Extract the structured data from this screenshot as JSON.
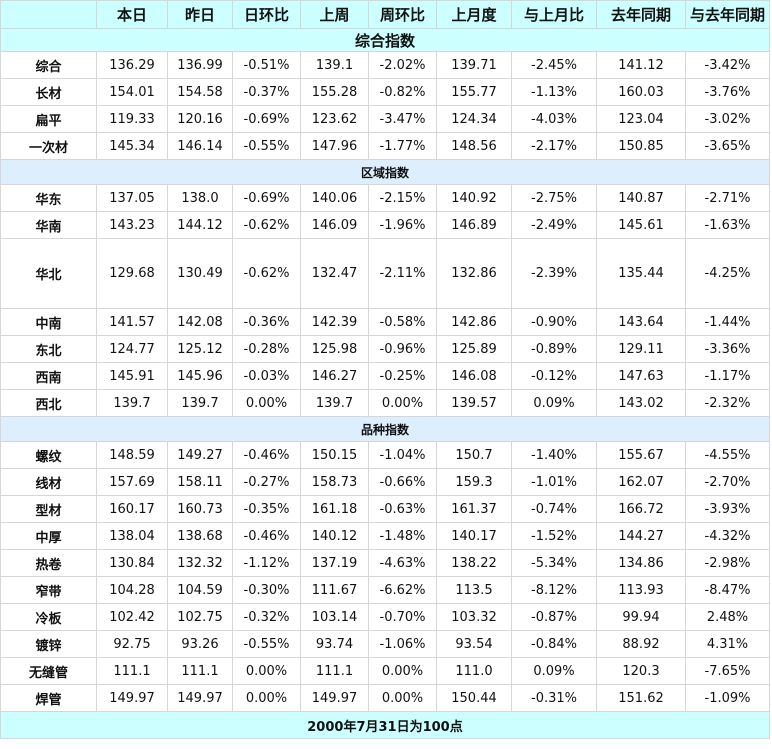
{
  "headers": [
    "本日",
    "昨日",
    "日环比",
    "上周",
    "周环比",
    "上月度",
    "与上月比",
    "去年同期",
    "与去年同期"
  ],
  "sections": [
    {
      "title": "综合指数",
      "style": "title",
      "rows": [
        {
          "name": "综合",
          "values": [
            "136.29",
            "136.99",
            "-0.51%",
            "139.1",
            "-2.02%",
            "139.71",
            "-2.45%",
            "141.12",
            "-3.42%"
          ]
        },
        {
          "name": "长材",
          "values": [
            "154.01",
            "154.58",
            "-0.37%",
            "155.28",
            "-0.82%",
            "155.77",
            "-1.13%",
            "160.03",
            "-3.76%"
          ]
        },
        {
          "name": "扁平",
          "values": [
            "119.33",
            "120.16",
            "-0.69%",
            "123.62",
            "-3.47%",
            "124.34",
            "-4.03%",
            "123.04",
            "-3.02%"
          ]
        },
        {
          "name": "一次材",
          "values": [
            "145.34",
            "146.14",
            "-0.55%",
            "147.96",
            "-1.77%",
            "148.56",
            "-2.17%",
            "150.85",
            "-3.65%"
          ]
        }
      ]
    },
    {
      "title": "区域指数",
      "style": "section",
      "rows": [
        {
          "name": "华东",
          "values": [
            "137.05",
            "138.0",
            "-0.69%",
            "140.06",
            "-2.15%",
            "140.92",
            "-2.75%",
            "140.87",
            "-2.71%"
          ]
        },
        {
          "name": "华南",
          "values": [
            "143.23",
            "144.12",
            "-0.62%",
            "146.09",
            "-1.96%",
            "146.89",
            "-2.49%",
            "145.61",
            "-1.63%"
          ]
        },
        {
          "name": "华北",
          "tall": true,
          "values": [
            "129.68",
            "130.49",
            "-0.62%",
            "132.47",
            "-2.11%",
            "132.86",
            "-2.39%",
            "135.44",
            "-4.25%"
          ]
        },
        {
          "name": "中南",
          "values": [
            "141.57",
            "142.08",
            "-0.36%",
            "142.39",
            "-0.58%",
            "142.86",
            "-0.90%",
            "143.64",
            "-1.44%"
          ]
        },
        {
          "name": "东北",
          "values": [
            "124.77",
            "125.12",
            "-0.28%",
            "125.98",
            "-0.96%",
            "125.89",
            "-0.89%",
            "129.11",
            "-3.36%"
          ]
        },
        {
          "name": "西南",
          "values": [
            "145.91",
            "145.96",
            "-0.03%",
            "146.27",
            "-0.25%",
            "146.08",
            "-0.12%",
            "147.63",
            "-1.17%"
          ]
        },
        {
          "name": "西北",
          "values": [
            "139.7",
            "139.7",
            "0.00%",
            "139.7",
            "0.00%",
            "139.57",
            "0.09%",
            "143.02",
            "-2.32%"
          ]
        }
      ]
    },
    {
      "title": "品种指数",
      "style": "section",
      "rows": [
        {
          "name": "螺纹",
          "values": [
            "148.59",
            "149.27",
            "-0.46%",
            "150.15",
            "-1.04%",
            "150.7",
            "-1.40%",
            "155.67",
            "-4.55%"
          ]
        },
        {
          "name": "线材",
          "values": [
            "157.69",
            "158.11",
            "-0.27%",
            "158.73",
            "-0.66%",
            "159.3",
            "-1.01%",
            "162.07",
            "-2.70%"
          ]
        },
        {
          "name": "型材",
          "values": [
            "160.17",
            "160.73",
            "-0.35%",
            "161.18",
            "-0.63%",
            "161.37",
            "-0.74%",
            "166.72",
            "-3.93%"
          ]
        },
        {
          "name": "中厚",
          "values": [
            "138.04",
            "138.68",
            "-0.46%",
            "140.12",
            "-1.48%",
            "140.17",
            "-1.52%",
            "144.27",
            "-4.32%"
          ]
        },
        {
          "name": "热卷",
          "values": [
            "130.84",
            "132.32",
            "-1.12%",
            "137.19",
            "-4.63%",
            "138.22",
            "-5.34%",
            "134.86",
            "-2.98%"
          ]
        },
        {
          "name": "窄带",
          "values": [
            "104.28",
            "104.59",
            "-0.30%",
            "111.67",
            "-6.62%",
            "113.5",
            "-8.12%",
            "113.93",
            "-8.47%"
          ]
        },
        {
          "name": "冷板",
          "values": [
            "102.42",
            "102.75",
            "-0.32%",
            "103.14",
            "-0.70%",
            "103.32",
            "-0.87%",
            "99.94",
            "2.48%"
          ]
        },
        {
          "name": "镀锌",
          "values": [
            "92.75",
            "93.26",
            "-0.55%",
            "93.74",
            "-1.06%",
            "93.54",
            "-0.84%",
            "88.92",
            "4.31%"
          ]
        },
        {
          "name": "无缝管",
          "values": [
            "111.1",
            "111.1",
            "0.00%",
            "111.1",
            "0.00%",
            "111.0",
            "0.09%",
            "120.3",
            "-7.65%"
          ]
        },
        {
          "name": "焊管",
          "values": [
            "149.97",
            "149.97",
            "0.00%",
            "149.97",
            "0.00%",
            "150.44",
            "-0.31%",
            "151.62",
            "-1.09%"
          ]
        }
      ]
    }
  ],
  "footer": "2000年7月31日为100点",
  "colors": {
    "negative": "#1a8f1a",
    "positive": "#e8101a",
    "neutral": "#111111",
    "header_bg": "#ccffff",
    "section_bg": "#ddeeff"
  }
}
